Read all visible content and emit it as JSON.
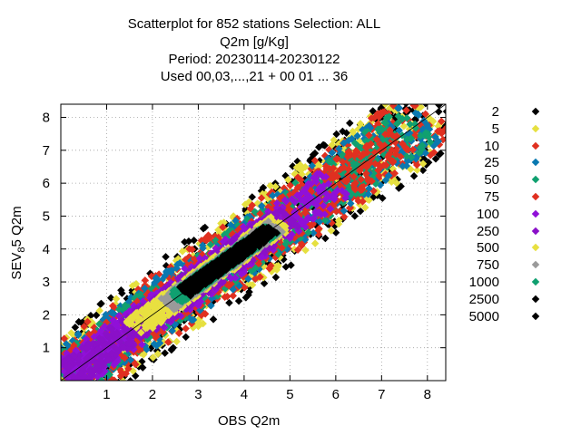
{
  "title_lines": [
    "Scatterplot for  852 stations Selection: ALL",
    "Q2m [g/Kg]",
    "Period: 20230114-20230122",
    "Used  00,03,...,21  + 00 01 ... 36"
  ],
  "chart_data": {
    "type": "scatter",
    "xlabel": "OBS Q2m",
    "ylabel_main": "SEV",
    "ylabel_sub": "8",
    "ylabel_rest": "5 Q2m",
    "xlim": [
      0,
      8.4
    ],
    "ylim": [
      0,
      8.4
    ],
    "x_ticks": [
      1,
      2,
      3,
      4,
      5,
      6,
      7,
      8
    ],
    "y_ticks": [
      1,
      2,
      3,
      4,
      5,
      6,
      7,
      8
    ],
    "grid": true,
    "diagonal": true,
    "legend_position": "right",
    "series": [
      {
        "name": "2",
        "color": "#000000",
        "halfwidth": 1.1,
        "lo": 0.05,
        "hi": 8.35
      },
      {
        "name": "5",
        "color": "#e6e040",
        "halfwidth": 0.98,
        "lo": 0.05,
        "hi": 8.2
      },
      {
        "name": "10",
        "color": "#e03020",
        "halfwidth": 0.86,
        "lo": 0.05,
        "hi": 8.1
      },
      {
        "name": "25",
        "color": "#0a78b0",
        "halfwidth": 0.74,
        "lo": 0.05,
        "hi": 7.95
      },
      {
        "name": "50",
        "color": "#10a070",
        "halfwidth": 0.64,
        "lo": 0.05,
        "hi": 7.8
      },
      {
        "name": "75",
        "color": "#e03020",
        "halfwidth": 0.56,
        "lo": 0.05,
        "hi": 7.4
      },
      {
        "name": "100",
        "color": "#9010d8",
        "halfwidth": 0.5,
        "lo": 0.05,
        "hi": 6.0
      },
      {
        "name": "250",
        "color": "#8a10c8",
        "halfwidth": 0.4,
        "lo": 0.1,
        "hi": 5.0
      },
      {
        "name": "500",
        "color": "#e8e040",
        "halfwidth": 0.3,
        "lo": 1.6,
        "hi": 4.8
      },
      {
        "name": "750",
        "color": "#9a9a9a",
        "halfwidth": 0.24,
        "lo": 2.3,
        "hi": 4.7
      },
      {
        "name": "1000",
        "color": "#10a070",
        "halfwidth": 0.2,
        "lo": 2.5,
        "hi": 4.6
      },
      {
        "name": "2500",
        "color": "#000000",
        "halfwidth": 0.18,
        "lo": 2.7,
        "hi": 4.6
      },
      {
        "name": "5000",
        "color": "#000000",
        "halfwidth": 0.0,
        "lo": 0.0,
        "hi": 0.0
      }
    ]
  }
}
